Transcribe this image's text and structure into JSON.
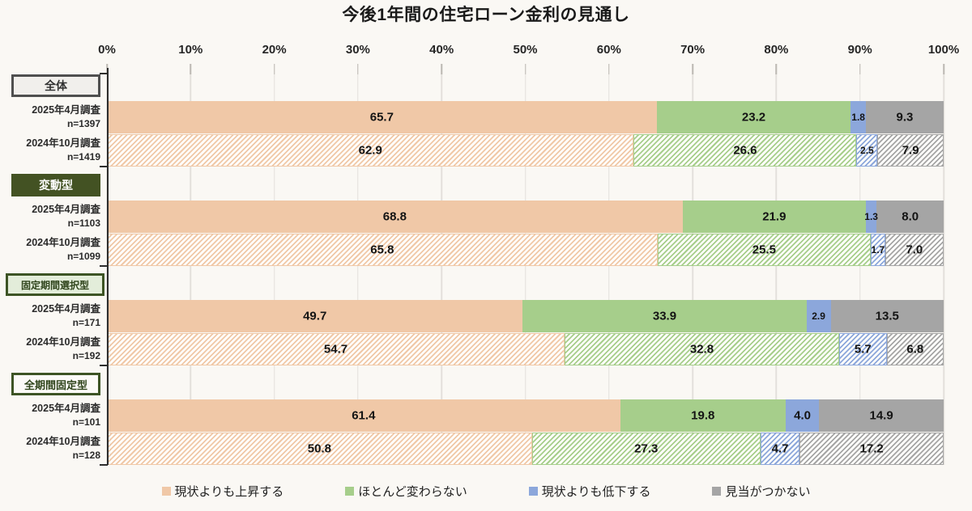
{
  "title": "今後1年間の住宅ローン金利の見通し",
  "axis": {
    "tick_labels": [
      "0%",
      "10%",
      "20%",
      "30%",
      "40%",
      "50%",
      "60%",
      "70%",
      "80%",
      "90%",
      "100%"
    ]
  },
  "legend": {
    "items": [
      {
        "label": "現状よりも上昇する",
        "color": "#F0C8A7"
      },
      {
        "label": "ほとんど変わらない",
        "color": "#A6CE8B"
      },
      {
        "label": "現状よりも低下する",
        "color": "#8CA7DB"
      },
      {
        "label": "見当がつかない",
        "color": "#A5A5A5"
      }
    ]
  },
  "groups": [
    {
      "label": "全体",
      "header_style": "neutral",
      "rows": [
        {
          "survey": "2025年4月調査",
          "n": "n=1397",
          "pattern": "solid",
          "values": [
            65.7,
            23.2,
            1.8,
            9.3
          ]
        },
        {
          "survey": "2024年10月調査",
          "n": "n=1419",
          "pattern": "hatched",
          "values": [
            62.9,
            26.6,
            2.5,
            7.9
          ]
        }
      ]
    },
    {
      "label": "変動型",
      "header_style": "dark_green",
      "rows": [
        {
          "survey": "2025年4月調査",
          "n": "n=1103",
          "pattern": "solid",
          "values": [
            68.8,
            21.9,
            1.3,
            8.0
          ]
        },
        {
          "survey": "2024年10月調査",
          "n": "n=1099",
          "pattern": "hatched",
          "values": [
            65.8,
            25.5,
            1.7,
            7.0
          ]
        }
      ]
    },
    {
      "label": "固定期間選択型",
      "header_style": "light_green",
      "rows": [
        {
          "survey": "2025年4月調査",
          "n": "n=171",
          "pattern": "solid",
          "values": [
            49.7,
            33.9,
            2.9,
            13.5
          ]
        },
        {
          "survey": "2024年10月調査",
          "n": "n=192",
          "pattern": "hatched",
          "values": [
            54.7,
            32.8,
            5.7,
            6.8
          ]
        }
      ]
    },
    {
      "label": "全期間固定型",
      "header_style": "outline_green",
      "rows": [
        {
          "survey": "2025年4月調査",
          "n": "n=101",
          "pattern": "solid",
          "values": [
            61.4,
            19.8,
            4.0,
            14.9
          ]
        },
        {
          "survey": "2024年10月調査",
          "n": "n=128",
          "pattern": "hatched",
          "values": [
            50.8,
            27.3,
            4.7,
            17.2
          ]
        }
      ]
    }
  ],
  "chart_data": {
    "type": "bar",
    "orientation": "horizontal",
    "stacked": true,
    "title": "今後1年間の住宅ローン金利の見通し",
    "x_axis": {
      "unit": "%",
      "range": [
        0,
        100
      ],
      "ticks": [
        0,
        10,
        20,
        30,
        40,
        50,
        60,
        70,
        80,
        90,
        100
      ],
      "grid": true
    },
    "legend_position": "bottom",
    "categories": [
      "全体 2025年4月調査 (n=1397)",
      "全体 2024年10月調査 (n=1419)",
      "変動型 2025年4月調査 (n=1103)",
      "変動型 2024年10月調査 (n=1099)",
      "固定期間選択型 2025年4月調査 (n=171)",
      "固定期間選択型 2024年10月調査 (n=192)",
      "全期間固定型 2025年4月調査 (n=101)",
      "全期間固定型 2024年10月調査 (n=128)"
    ],
    "series": [
      {
        "name": "現状よりも上昇する",
        "color": "#F0C8A7",
        "values": [
          65.7,
          62.9,
          68.8,
          65.8,
          49.7,
          54.7,
          61.4,
          50.8
        ]
      },
      {
        "name": "ほとんど変わらない",
        "color": "#A6CE8B",
        "values": [
          23.2,
          26.6,
          21.9,
          25.5,
          33.9,
          32.8,
          19.8,
          27.3
        ]
      },
      {
        "name": "現状よりも低下する",
        "color": "#8CA7DB",
        "values": [
          1.8,
          2.5,
          1.3,
          1.7,
          2.9,
          5.7,
          4.0,
          4.7
        ]
      },
      {
        "name": "見当がつかない",
        "color": "#A5A5A5",
        "values": [
          9.3,
          7.9,
          8.0,
          7.0,
          13.5,
          6.8,
          14.9,
          17.2
        ]
      }
    ],
    "pattern_note": "2025年4月調査 rows are solid fill; 2024年10月調査 rows are diagonal-hatched fill"
  }
}
